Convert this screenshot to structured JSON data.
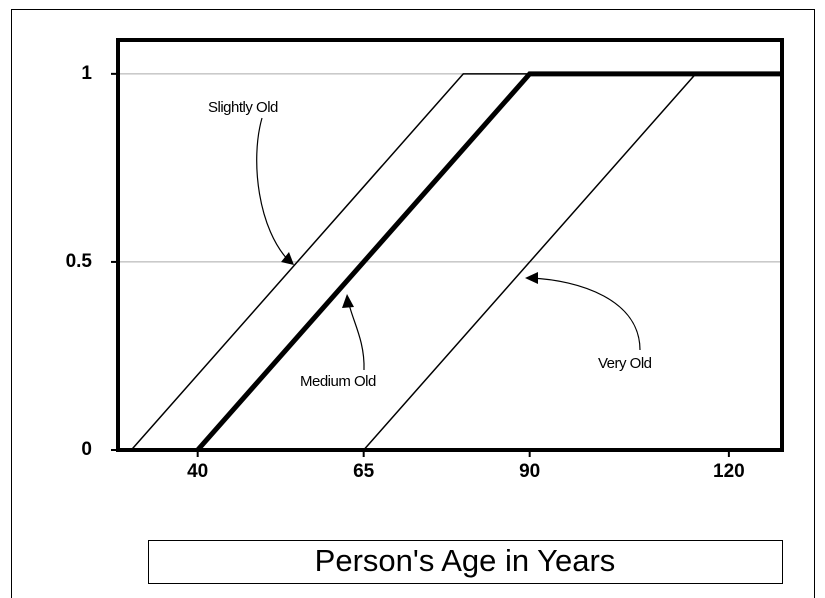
{
  "chart_data": {
    "type": "line",
    "xlabel": "Person's Age in Years",
    "xlim": [
      28,
      128
    ],
    "xticks": [
      40,
      65,
      90,
      120
    ],
    "ylim": [
      0,
      1.09
    ],
    "yticks": [
      0,
      0.5,
      1
    ],
    "grid": true,
    "series": [
      {
        "name": "Slightly Old",
        "color": "#000000",
        "line_width": 1.5,
        "x": [
          30,
          80,
          128
        ],
        "values": [
          0,
          1,
          1
        ]
      },
      {
        "name": "Medium Old",
        "color": "#000000",
        "line_width": 5,
        "x": [
          40,
          90,
          128
        ],
        "values": [
          0,
          1,
          1
        ]
      },
      {
        "name": "Very Old",
        "color": "#000000",
        "line_width": 1.5,
        "x": [
          65,
          115,
          128
        ],
        "values": [
          0,
          1,
          1
        ]
      }
    ]
  }
}
